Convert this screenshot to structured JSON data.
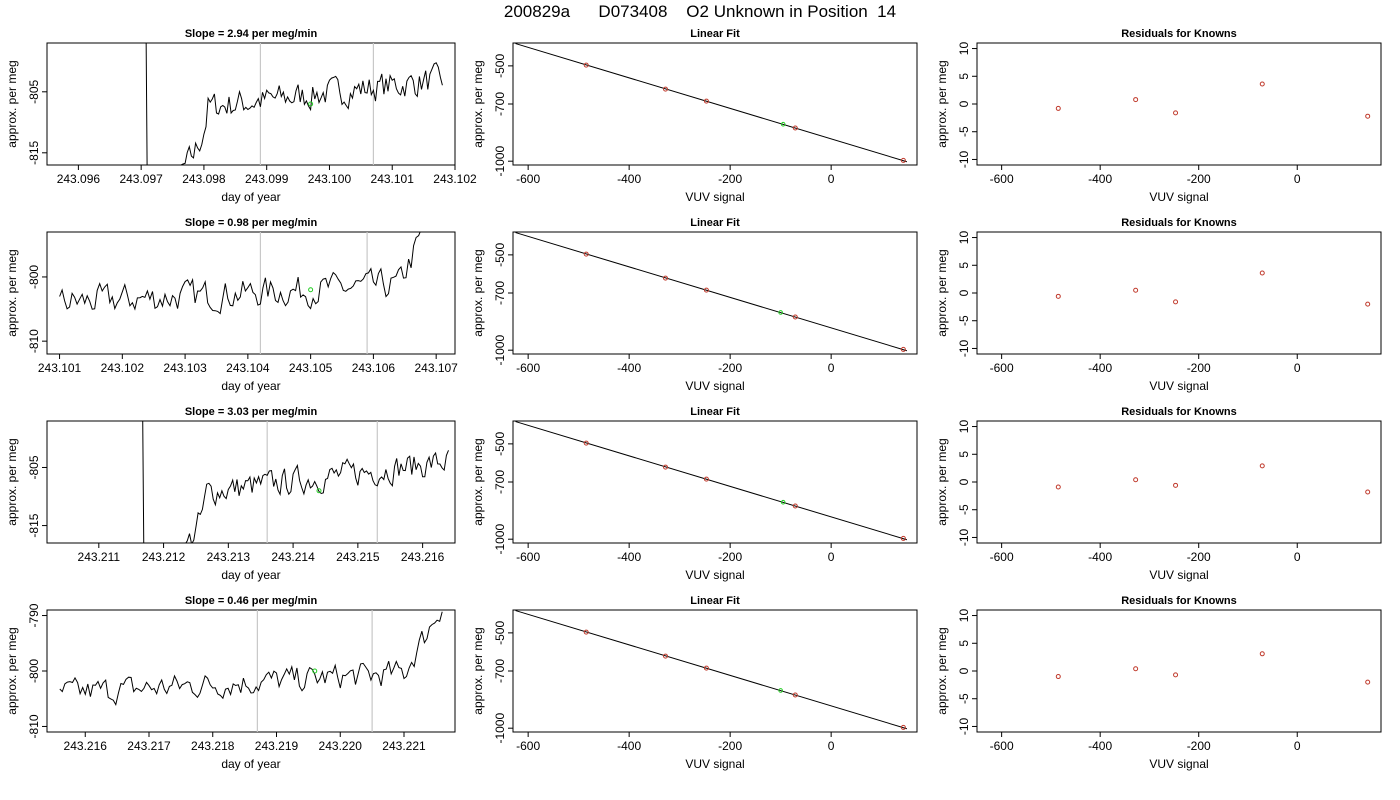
{
  "header": {
    "title": "200829a      D073408    O2 Unknown in Position  14"
  },
  "colors": {
    "trace": "#000000",
    "known_points": "#c0392b",
    "unknown_point": "#22cc22",
    "vertical_markers": "#c8c8c8"
  },
  "chart_data": [
    {
      "row": 1,
      "panel": "timeseries",
      "type": "line",
      "title": "Slope =  2.94  per meg/min",
      "xlabel": "day of year",
      "ylabel": "approx. per meg",
      "xlim": [
        243.0955,
        243.102
      ],
      "ylim": [
        -817,
        -797
      ],
      "xticks": [
        "243.096",
        "243.097",
        "243.098",
        "243.099",
        "243.100",
        "243.101",
        "243.102"
      ],
      "yticks": [
        "-805",
        "-815"
      ],
      "vlines": [
        243.0989,
        243.1007
      ],
      "unknown_marker": {
        "x": 243.0997,
        "y": -807
      },
      "trace": {
        "start": 243.0968,
        "end": 243.1018,
        "slope_profile": "drop",
        "base": -809,
        "rise": 6
      }
    },
    {
      "row": 1,
      "panel": "linear_fit",
      "type": "scatter",
      "title": "Linear Fit",
      "xlabel": "VUV signal",
      "ylabel": "approx. per meg",
      "xlim": [
        -630,
        170
      ],
      "ylim": [
        -1020,
        -380
      ],
      "xticks": [
        "-600",
        "-400",
        "-200",
        "0"
      ],
      "yticks": [
        "-500",
        "-700",
        "-1000"
      ],
      "known_points": [
        [
          -485,
          -496
        ],
        [
          -328,
          -622
        ],
        [
          -247,
          -685
        ],
        [
          -71,
          -826
        ],
        [
          143,
          -996
        ]
      ],
      "unknown_point": [
        -95,
        -806
      ],
      "fit_line": [
        [
          -625,
          -383
        ],
        [
          150,
          -1003
        ]
      ]
    },
    {
      "row": 1,
      "panel": "residuals",
      "type": "scatter",
      "title": "Residuals for Knowns",
      "xlabel": "VUV signal",
      "ylabel": "approx. per meg",
      "xlim": [
        -650,
        170
      ],
      "ylim": [
        -11,
        11
      ],
      "xticks": [
        "-600",
        "-400",
        "-200",
        "0"
      ],
      "yticks": [
        "10",
        "5",
        "0",
        "-5",
        "-10"
      ],
      "points": [
        [
          -485,
          -0.8
        ],
        [
          -328,
          0.8
        ],
        [
          -247,
          -1.6
        ],
        [
          -71,
          3.6
        ],
        [
          143,
          -2.2
        ]
      ]
    },
    {
      "row": 2,
      "panel": "timeseries",
      "type": "line",
      "title": "Slope =  0.98  per meg/min",
      "xlabel": "day of year",
      "ylabel": "approx. per meg",
      "xlim": [
        243.1008,
        243.1073
      ],
      "ylim": [
        -812,
        -793
      ],
      "xticks": [
        "243.101",
        "243.102",
        "243.103",
        "243.104",
        "243.105",
        "243.106",
        "243.107"
      ],
      "yticks": [
        "-800",
        "-810"
      ],
      "vlines": [
        243.1042,
        243.1059
      ],
      "unknown_marker": {
        "x": 243.105,
        "y": -802
      },
      "trace": {
        "start": 243.101,
        "end": 243.107,
        "slope_profile": "flat",
        "base": -804,
        "rise": 3
      }
    },
    {
      "row": 2,
      "panel": "linear_fit",
      "type": "scatter",
      "title": "Linear Fit",
      "xlabel": "VUV signal",
      "ylabel": "approx. per meg",
      "xlim": [
        -630,
        170
      ],
      "ylim": [
        -1020,
        -380
      ],
      "xticks": [
        "-600",
        "-400",
        "-200",
        "0"
      ],
      "yticks": [
        "-500",
        "-700",
        "-1000"
      ],
      "known_points": [
        [
          -485,
          -496
        ],
        [
          -328,
          -622
        ],
        [
          -247,
          -685
        ],
        [
          -71,
          -826
        ],
        [
          143,
          -996
        ]
      ],
      "unknown_point": [
        -100,
        -802
      ],
      "fit_line": [
        [
          -625,
          -383
        ],
        [
          150,
          -1003
        ]
      ]
    },
    {
      "row": 2,
      "panel": "residuals",
      "type": "scatter",
      "title": "Residuals for Knowns",
      "xlabel": "VUV signal",
      "ylabel": "approx. per meg",
      "xlim": [
        -650,
        170
      ],
      "ylim": [
        -11,
        11
      ],
      "xticks": [
        "-600",
        "-400",
        "-200",
        "0"
      ],
      "yticks": [
        "10",
        "5",
        "0",
        "-5",
        "-10"
      ],
      "points": [
        [
          -485,
          -0.6
        ],
        [
          -328,
          0.5
        ],
        [
          -247,
          -1.6
        ],
        [
          -71,
          3.6
        ],
        [
          143,
          -2.0
        ]
      ]
    },
    {
      "row": 3,
      "panel": "timeseries",
      "type": "line",
      "title": "Slope =  3.03  per meg/min",
      "xlabel": "day of year",
      "ylabel": "approx. per meg",
      "xlim": [
        243.2102,
        243.2165
      ],
      "ylim": [
        -818,
        -797
      ],
      "xticks": [
        "243.211",
        "243.212",
        "243.213",
        "243.214",
        "243.215",
        "243.216"
      ],
      "yticks": [
        "-805",
        "-815"
      ],
      "vlines": [
        243.2136,
        243.2153
      ],
      "unknown_marker": {
        "x": 243.2144,
        "y": -809
      },
      "trace": {
        "start": 243.2114,
        "end": 243.2164,
        "slope_profile": "drop",
        "base": -811,
        "rise": 7
      }
    },
    {
      "row": 3,
      "panel": "linear_fit",
      "type": "scatter",
      "title": "Linear Fit",
      "xlabel": "VUV signal",
      "ylabel": "approx. per meg",
      "xlim": [
        -630,
        170
      ],
      "ylim": [
        -1020,
        -380
      ],
      "xticks": [
        "-600",
        "-400",
        "-200",
        "0"
      ],
      "yticks": [
        "-500",
        "-700",
        "-1000"
      ],
      "known_points": [
        [
          -485,
          -496
        ],
        [
          -328,
          -622
        ],
        [
          -247,
          -685
        ],
        [
          -71,
          -826
        ],
        [
          143,
          -996
        ]
      ],
      "unknown_point": [
        -95,
        -806
      ],
      "fit_line": [
        [
          -625,
          -383
        ],
        [
          150,
          -1003
        ]
      ]
    },
    {
      "row": 3,
      "panel": "residuals",
      "type": "scatter",
      "title": "Residuals for Knowns",
      "xlabel": "VUV signal",
      "ylabel": "approx. per meg",
      "xlim": [
        -650,
        170
      ],
      "ylim": [
        -11,
        11
      ],
      "xticks": [
        "-600",
        "-400",
        "-200",
        "0"
      ],
      "yticks": [
        "10",
        "5",
        "0",
        "-5",
        "-10"
      ],
      "points": [
        [
          -485,
          -0.9
        ],
        [
          -328,
          0.4
        ],
        [
          -247,
          -0.6
        ],
        [
          -71,
          2.9
        ],
        [
          143,
          -1.8
        ]
      ]
    },
    {
      "row": 4,
      "panel": "timeseries",
      "type": "line",
      "title": "Slope =  0.46  per meg/min",
      "xlabel": "day of year",
      "ylabel": "approx. per meg",
      "xlim": [
        243.2154,
        243.2218
      ],
      "ylim": [
        -811,
        -789
      ],
      "xticks": [
        "243.216",
        "243.217",
        "243.218",
        "243.219",
        "243.220",
        "243.221"
      ],
      "yticks": [
        "-790",
        "-800",
        "-810"
      ],
      "vlines": [
        243.2187,
        243.2205
      ],
      "unknown_marker": {
        "x": 243.2196,
        "y": -800
      },
      "trace": {
        "start": 243.2156,
        "end": 243.2216,
        "slope_profile": "flat",
        "base": -804,
        "rise": 4
      }
    },
    {
      "row": 4,
      "panel": "linear_fit",
      "type": "scatter",
      "title": "Linear Fit",
      "xlabel": "VUV signal",
      "ylabel": "approx. per meg",
      "xlim": [
        -630,
        170
      ],
      "ylim": [
        -1020,
        -380
      ],
      "xticks": [
        "-600",
        "-400",
        "-200",
        "0"
      ],
      "yticks": [
        "-500",
        "-700",
        "-1000"
      ],
      "known_points": [
        [
          -485,
          -496
        ],
        [
          -328,
          -622
        ],
        [
          -247,
          -685
        ],
        [
          -71,
          -826
        ],
        [
          143,
          -996
        ]
      ],
      "unknown_point": [
        -100,
        -802
      ],
      "fit_line": [
        [
          -625,
          -383
        ],
        [
          150,
          -1003
        ]
      ]
    },
    {
      "row": 4,
      "panel": "residuals",
      "type": "scatter",
      "title": "Residuals for Knowns",
      "xlabel": "VUV signal",
      "ylabel": "approx. per meg",
      "xlim": [
        -650,
        170
      ],
      "ylim": [
        -11,
        11
      ],
      "xticks": [
        "-600",
        "-400",
        "-200",
        "0"
      ],
      "yticks": [
        "10",
        "5",
        "0",
        "-5",
        "-10"
      ],
      "points": [
        [
          -485,
          -1.0
        ],
        [
          -328,
          0.4
        ],
        [
          -247,
          -0.7
        ],
        [
          -71,
          3.1
        ],
        [
          143,
          -2.0
        ]
      ]
    }
  ]
}
